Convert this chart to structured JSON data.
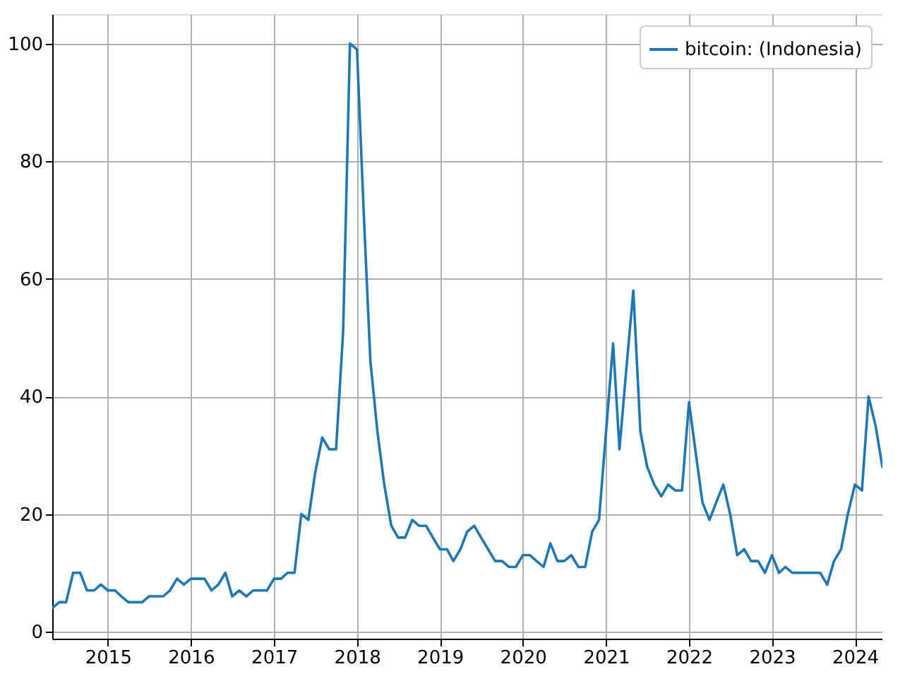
{
  "chart_data": {
    "type": "line",
    "x": [
      "2014-05",
      "2014-06",
      "2014-07",
      "2014-08",
      "2014-09",
      "2014-10",
      "2014-11",
      "2014-12",
      "2015-01",
      "2015-02",
      "2015-03",
      "2015-04",
      "2015-05",
      "2015-06",
      "2015-07",
      "2015-08",
      "2015-09",
      "2015-10",
      "2015-11",
      "2015-12",
      "2016-01",
      "2016-02",
      "2016-03",
      "2016-04",
      "2016-05",
      "2016-06",
      "2016-07",
      "2016-08",
      "2016-09",
      "2016-10",
      "2016-11",
      "2016-12",
      "2017-01",
      "2017-02",
      "2017-03",
      "2017-04",
      "2017-05",
      "2017-06",
      "2017-07",
      "2017-08",
      "2017-09",
      "2017-10",
      "2017-11",
      "2017-12",
      "2018-01",
      "2018-02",
      "2018-03",
      "2018-04",
      "2018-05",
      "2018-06",
      "2018-07",
      "2018-08",
      "2018-09",
      "2018-10",
      "2018-11",
      "2018-12",
      "2019-01",
      "2019-02",
      "2019-03",
      "2019-04",
      "2019-05",
      "2019-06",
      "2019-07",
      "2019-08",
      "2019-09",
      "2019-10",
      "2019-11",
      "2019-12",
      "2020-01",
      "2020-02",
      "2020-03",
      "2020-04",
      "2020-05",
      "2020-06",
      "2020-07",
      "2020-08",
      "2020-09",
      "2020-10",
      "2020-11",
      "2020-12",
      "2021-01",
      "2021-02",
      "2021-03",
      "2021-04",
      "2021-05",
      "2021-06",
      "2021-07",
      "2021-08",
      "2021-09",
      "2021-10",
      "2021-11",
      "2021-12",
      "2022-01",
      "2022-02",
      "2022-03",
      "2022-04",
      "2022-05",
      "2022-06",
      "2022-07",
      "2022-08",
      "2022-09",
      "2022-10",
      "2022-11",
      "2022-12",
      "2023-01",
      "2023-02",
      "2023-03",
      "2023-04",
      "2023-05",
      "2023-06",
      "2023-07",
      "2023-08",
      "2023-09",
      "2023-10",
      "2023-11",
      "2023-12",
      "2024-01",
      "2024-02",
      "2024-03",
      "2024-04",
      "2024-05"
    ],
    "series": [
      {
        "name": "bitcoin: (Indonesia)",
        "color": "#1f77b4",
        "values": [
          4,
          5,
          5,
          10,
          10,
          7,
          7,
          8,
          7,
          7,
          6,
          5,
          5,
          5,
          6,
          6,
          6,
          7,
          9,
          8,
          9,
          9,
          9,
          7,
          8,
          10,
          6,
          7,
          6,
          7,
          7,
          7,
          9,
          9,
          10,
          10,
          20,
          19,
          27,
          33,
          31,
          31,
          51,
          100,
          99,
          70,
          46,
          34,
          25,
          18,
          16,
          16,
          19,
          18,
          18,
          16,
          14,
          14,
          12,
          14,
          17,
          18,
          16,
          14,
          12,
          12,
          11,
          11,
          13,
          13,
          12,
          11,
          15,
          12,
          12,
          13,
          11,
          11,
          17,
          19,
          34,
          49,
          31,
          45,
          58,
          34,
          28,
          25,
          23,
          25,
          24,
          24,
          39,
          30,
          22,
          19,
          22,
          25,
          20,
          13,
          14,
          12,
          12,
          10,
          13,
          10,
          11,
          10,
          10,
          10,
          10,
          10,
          8,
          12,
          14,
          20,
          25,
          24,
          40,
          35,
          28
        ]
      }
    ],
    "xlim": [
      "2014-05",
      "2024-05"
    ],
    "xticks": [
      "2015",
      "2016",
      "2017",
      "2018",
      "2019",
      "2020",
      "2021",
      "2022",
      "2023",
      "2024"
    ],
    "ylim": [
      -1.2,
      105
    ],
    "yticks": [
      0,
      20,
      40,
      60,
      80,
      100
    ],
    "grid": true,
    "legend": "top right",
    "line_style": "solid",
    "marker": "none"
  }
}
